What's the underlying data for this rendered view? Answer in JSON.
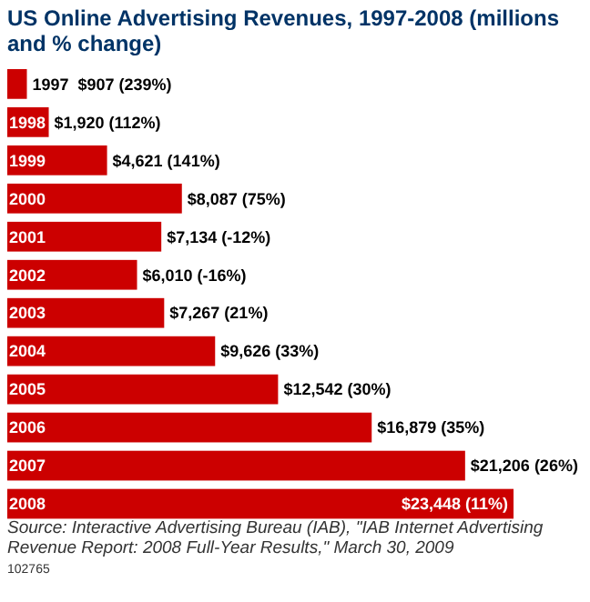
{
  "chart_data": {
    "type": "bar",
    "orientation": "horizontal",
    "title": "US Online Advertising Revenues, 1997-2008 (millions and % change)",
    "categories": [
      "1997",
      "1998",
      "1999",
      "2000",
      "2001",
      "2002",
      "2003",
      "2004",
      "2005",
      "2006",
      "2007",
      "2008"
    ],
    "values": [
      907,
      1920,
      4621,
      8087,
      7134,
      6010,
      7267,
      9626,
      12542,
      16879,
      21206,
      23448
    ],
    "value_labels": [
      "$907 (239%)",
      "$1,920 (112%)",
      "$4,621 (141%)",
      "$8,087 (75%)",
      "$7,134 (-12%)",
      "$6,010 (-16%)",
      "$7,267 (21%)",
      "$9,626 (33%)",
      "$12,542 (30%)",
      "$16,879 (35%)",
      "$21,206 (26%)",
      "$23,448 (11%)"
    ],
    "color": "#cc0000",
    "annotations": [
      "Source: Interactive Advertising Bureau (IAB), \"IAB Internet Advertising Revenue Report: 2008 Full-Year Results,\" March 30, 2009",
      "102765"
    ]
  }
}
